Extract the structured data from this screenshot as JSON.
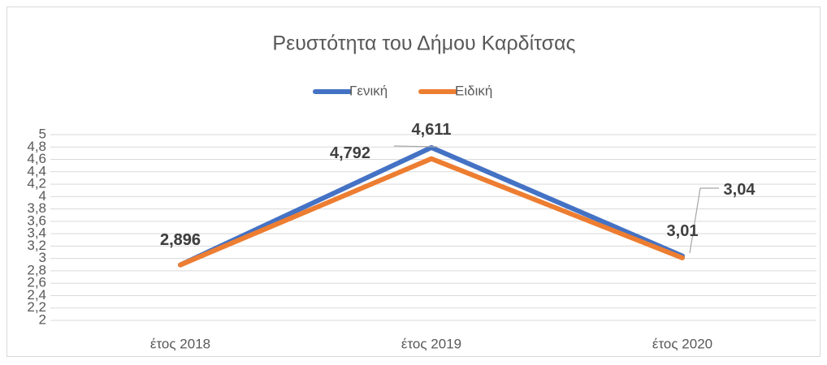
{
  "chart_data": {
    "type": "line",
    "title": "Ρευστότητα του Δήμου Καρδίτσας",
    "categories": [
      "έτος 2018",
      "έτος 2019",
      "έτος 2020"
    ],
    "series": [
      {
        "name": "Γενική",
        "color": "#4472c4",
        "values": [
          2.896,
          4.792,
          3.04
        ],
        "value_labels": [
          "2,896",
          "4,792",
          "3,04"
        ]
      },
      {
        "name": "Ειδική",
        "color": "#ed7d31",
        "values": [
          2.896,
          4.611,
          3.01
        ],
        "value_labels": [
          "2,896",
          "4,611",
          "3,01"
        ]
      }
    ],
    "ylim": [
      2,
      5
    ],
    "yticks": [
      2,
      {
        "value": 2.2,
        "label": "2,2"
      },
      {
        "value": 2.4,
        "label": "2,4"
      },
      {
        "value": 2.6,
        "label": "2,6"
      },
      {
        "value": 2.8,
        "label": "2,8"
      },
      3,
      {
        "value": 3.2,
        "label": "3,2"
      },
      {
        "value": 3.4,
        "label": "3,4"
      },
      {
        "value": 3.6,
        "label": "3,6"
      },
      {
        "value": 3.8,
        "label": "3,8"
      },
      4,
      {
        "value": 4.2,
        "label": "4,2"
      },
      {
        "value": 4.4,
        "label": "4,4"
      },
      {
        "value": 4.6,
        "label": "4,6"
      },
      {
        "value": 4.8,
        "label": "4,8"
      },
      5
    ],
    "grid": true,
    "legend": "top"
  }
}
